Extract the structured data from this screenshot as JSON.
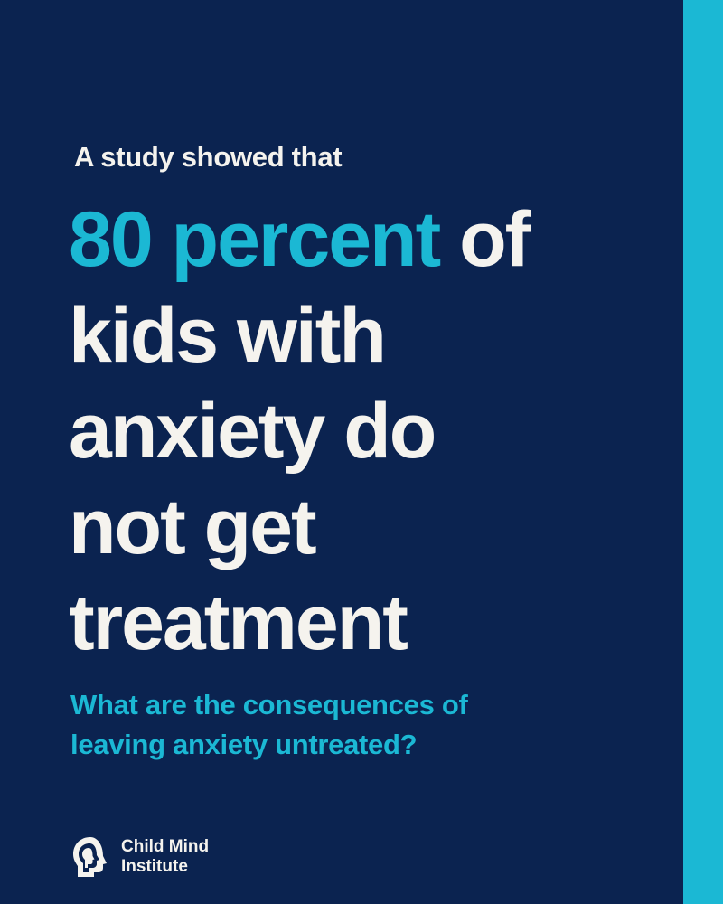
{
  "intro": "A study showed that",
  "headline": {
    "highlight": "80 percent",
    "line1_rest": " of",
    "line2": "kids with",
    "line3": "anxiety do",
    "line4": "not get",
    "line5": "treatment"
  },
  "question": {
    "line1": "What are the consequences of",
    "line2": "leaving anxiety untreated?"
  },
  "logo": {
    "icon": "head-profile-icon",
    "line1": "Child Mind",
    "line2": "Institute"
  },
  "colors": {
    "background": "#0b2350",
    "accent": "#1bb8d4",
    "text": "#f5f3ee"
  }
}
